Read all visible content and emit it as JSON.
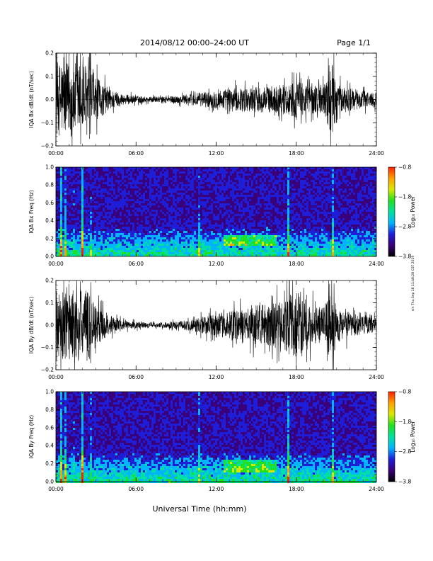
{
  "header": {
    "title": "2014/08/12   00:00–24:00 UT",
    "page": "Page 1/1"
  },
  "footer": {
    "xlabel": "Universal Time (hh:mm)"
  },
  "side_note": "sm Thu Sep 18 11:48:28 CST 2019",
  "x_ticks": [
    "00:00",
    "06:00",
    "12:00",
    "18:00",
    "24:00"
  ],
  "colorbar": {
    "label": "Log₁₀ Power",
    "ticks": [
      "−0.8",
      "−1.8",
      "−2.8",
      "−3.8"
    ],
    "colors": [
      "#000000",
      "#3a007a",
      "#1e1ed8",
      "#00b4ff",
      "#00e0a0",
      "#20e020",
      "#d8e800",
      "#ffa000",
      "#ff2000"
    ]
  },
  "chart_data": [
    {
      "type": "line",
      "panel": "waveform-bx",
      "ylabel": "IQA Bx dB/dt (nT/sec)",
      "xlim": [
        0,
        24
      ],
      "ylim": [
        -0.2,
        0.2
      ],
      "yticks": [
        "−0.2",
        "−0.1",
        "0.0",
        "0.1",
        "0.2"
      ],
      "envelope_x_hours": [
        0,
        0.5,
        1.5,
        2.5,
        3,
        4,
        5,
        6,
        7,
        8,
        9,
        10,
        11,
        12,
        13,
        14,
        15,
        16,
        17,
        18,
        19,
        20,
        20.7,
        21,
        22,
        23,
        24
      ],
      "envelope_amplitude": [
        0.2,
        0.2,
        0.2,
        0.2,
        0.12,
        0.06,
        0.03,
        0.02,
        0.015,
        0.015,
        0.02,
        0.03,
        0.04,
        0.05,
        0.06,
        0.06,
        0.07,
        0.07,
        0.08,
        0.1,
        0.08,
        0.08,
        0.2,
        0.08,
        0.06,
        0.05,
        0.04
      ],
      "color": "#000000"
    },
    {
      "type": "heatmap",
      "panel": "spectrogram-bx",
      "ylabel": "IQA Bx Freq (Hz)",
      "xlim": [
        0,
        24
      ],
      "ylim": [
        0,
        1.0
      ],
      "yticks": [
        "0.0",
        "0.2",
        "0.4",
        "0.6",
        "0.8",
        "1.0"
      ],
      "zlim": [
        -3.8,
        -0.8
      ],
      "bright_lines_hours": [
        0.3,
        0.6,
        1.2,
        1.9,
        2.6,
        10.7,
        17.3,
        20.7
      ],
      "band_hours": [
        12.5,
        16.5
      ],
      "band_freq_hz": [
        0.12,
        0.25
      ]
    },
    {
      "type": "line",
      "panel": "waveform-by",
      "ylabel": "IQA By dB/dt (nT/sec)",
      "xlim": [
        0,
        24
      ],
      "ylim": [
        -0.2,
        0.2
      ],
      "yticks": [
        "−0.2",
        "−0.1",
        "0.0",
        "0.1",
        "0.2"
      ],
      "envelope_x_hours": [
        0,
        0.5,
        1.5,
        2.5,
        3,
        4,
        5,
        6,
        7,
        8,
        9,
        10,
        11,
        12,
        13,
        14,
        15,
        16,
        17,
        18,
        19,
        20,
        20.7,
        21,
        22,
        23,
        24
      ],
      "envelope_amplitude": [
        0.2,
        0.2,
        0.2,
        0.2,
        0.12,
        0.05,
        0.025,
        0.02,
        0.015,
        0.015,
        0.02,
        0.03,
        0.05,
        0.06,
        0.08,
        0.09,
        0.11,
        0.12,
        0.14,
        0.2,
        0.12,
        0.1,
        0.2,
        0.1,
        0.07,
        0.05,
        0.04
      ],
      "color": "#000000"
    },
    {
      "type": "heatmap",
      "panel": "spectrogram-by",
      "ylabel": "IQA By Freq (Hz)",
      "xlim": [
        0,
        24
      ],
      "ylim": [
        0,
        1.0
      ],
      "yticks": [
        "0.0",
        "0.2",
        "0.4",
        "0.6",
        "0.8",
        "1.0"
      ],
      "zlim": [
        -3.8,
        -0.8
      ],
      "bright_lines_hours": [
        0.3,
        0.6,
        1.2,
        1.9,
        2.6,
        10.7,
        17.3,
        20.7
      ],
      "band_hours": [
        12.5,
        16.5
      ],
      "band_freq_hz": [
        0.12,
        0.25
      ]
    }
  ]
}
